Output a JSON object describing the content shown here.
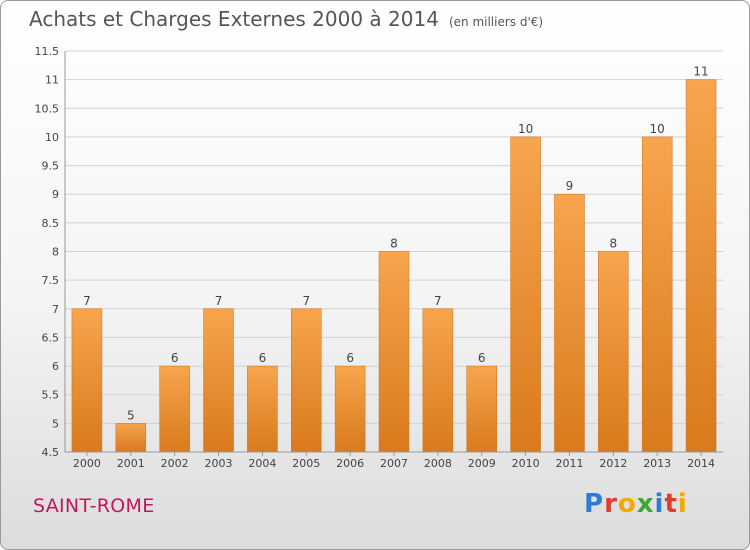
{
  "header": {
    "title": "Achats et Charges Externes 2000 à 2014",
    "subtitle": "(en milliers d'€)"
  },
  "footer": {
    "commune": "SAINT-ROME",
    "logo_letters": [
      "P",
      "r",
      "o",
      "x",
      "i",
      "t",
      "i"
    ],
    "logo_colors": [
      "#2b7bd8",
      "#e33b2e",
      "#f6a800",
      "#3aa935",
      "#2b7bd8",
      "#e33b2e",
      "#f6a800"
    ]
  },
  "colors": {
    "bar_top": "#f7a54e",
    "bar_bottom": "#d97a1c",
    "grid": "#d2d2d2",
    "axis_text": "#444444"
  },
  "chart_data": {
    "type": "bar",
    "title": "Achats et Charges Externes 2000 à 2014",
    "subtitle": "(en milliers d'€)",
    "categories": [
      "2000",
      "2001",
      "2002",
      "2003",
      "2004",
      "2005",
      "2006",
      "2007",
      "2008",
      "2009",
      "2010",
      "2011",
      "2012",
      "2013",
      "2014"
    ],
    "values": [
      7,
      5,
      6,
      7,
      6,
      7,
      6,
      8,
      7,
      6,
      10,
      9,
      8,
      10,
      11
    ],
    "ylim": [
      4.5,
      11.5
    ],
    "yticks": [
      4.5,
      5,
      5.5,
      6,
      6.5,
      7,
      7.5,
      8,
      8.5,
      9,
      9.5,
      10,
      10.5,
      11,
      11.5
    ],
    "grid": true,
    "data_labels": true
  }
}
